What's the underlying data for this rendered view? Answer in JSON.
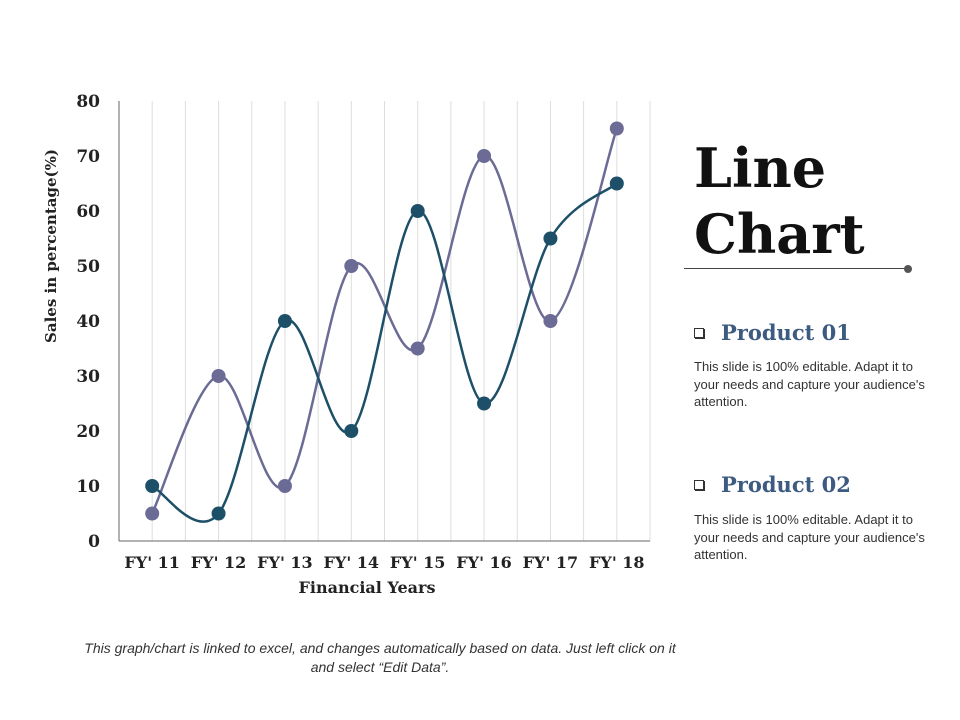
{
  "chart_data": {
    "type": "line",
    "xlabel": "Financial Years",
    "ylabel": "Sales in percentage(%)",
    "categories": [
      "FY' 11",
      "FY' 12",
      "FY' 13",
      "FY' 14",
      "FY' 15",
      "FY' 16",
      "FY' 17",
      "FY' 18"
    ],
    "yticks": [
      0,
      10,
      20,
      30,
      40,
      50,
      60,
      70,
      80
    ],
    "ylim": [
      0,
      80
    ],
    "grid": "vertical",
    "series": [
      {
        "name": "Product 01",
        "values": [
          10,
          5,
          40,
          20,
          60,
          25,
          55,
          65
        ],
        "color": "#1d5068"
      },
      {
        "name": "Product 02",
        "values": [
          5,
          30,
          10,
          50,
          35,
          70,
          40,
          75
        ],
        "color": "#6b6b96"
      }
    ]
  },
  "side": {
    "title_line1": "Line",
    "title_line2": "Chart",
    "legend": [
      {
        "title": "Product 01",
        "desc": "This slide is 100% editable. Adapt it to your needs and capture your audience's attention."
      },
      {
        "title": "Product 02",
        "desc": "This slide is 100% editable. Adapt it to your needs and capture your audience's attention."
      }
    ]
  },
  "footnote": "This graph/chart is linked to excel, and changes automatically based on data. Just left click on it and select “Edit Data”."
}
